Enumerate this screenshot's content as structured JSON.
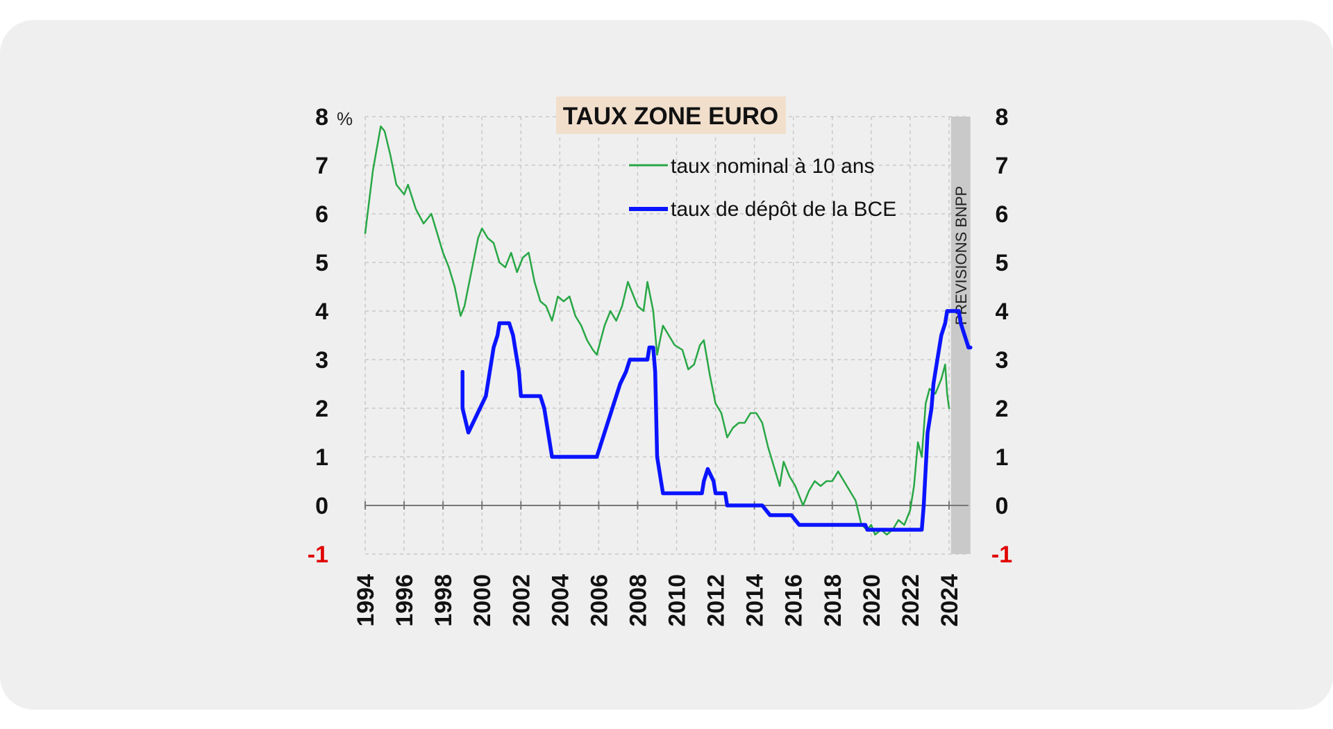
{
  "chart_data": {
    "type": "line",
    "title": "TAUX ZONE EURO",
    "y_unit": "%",
    "ylim": [
      -1,
      8
    ],
    "y_ticks": [
      8,
      7,
      6,
      5,
      4,
      3,
      2,
      1,
      0,
      -1
    ],
    "xlim": [
      1994,
      2025
    ],
    "x_tick_labels": [
      "1994",
      "1996",
      "1998",
      "2000",
      "2002",
      "2004",
      "2006",
      "2008",
      "2010",
      "2012",
      "2014",
      "2016",
      "2018",
      "2020",
      "2022",
      "2024"
    ],
    "grid": true,
    "legend_position": "top-right",
    "forecast_band": {
      "from": 2024.1,
      "to": 2025.1,
      "label": "PREVISIONS BNPP"
    },
    "colors": {
      "nominal": "#28a745",
      "deposit": "#0a14ff",
      "negative_tick": "#e00000",
      "title_bg": "#f1dfcc",
      "band": "#c9c9c9",
      "grid": "#c8c8c8"
    },
    "series": [
      {
        "name": "taux nominal à 10 ans",
        "color": "#28a745",
        "points": [
          [
            1994.0,
            5.6
          ],
          [
            1994.4,
            6.9
          ],
          [
            1994.8,
            7.8
          ],
          [
            1995.0,
            7.7
          ],
          [
            1995.3,
            7.2
          ],
          [
            1995.6,
            6.6
          ],
          [
            1996.0,
            6.4
          ],
          [
            1996.2,
            6.6
          ],
          [
            1996.6,
            6.1
          ],
          [
            1997.0,
            5.8
          ],
          [
            1997.4,
            6.0
          ],
          [
            1997.7,
            5.6
          ],
          [
            1998.0,
            5.2
          ],
          [
            1998.3,
            4.9
          ],
          [
            1998.6,
            4.5
          ],
          [
            1998.9,
            3.9
          ],
          [
            1999.1,
            4.1
          ],
          [
            1999.4,
            4.7
          ],
          [
            1999.8,
            5.5
          ],
          [
            2000.0,
            5.7
          ],
          [
            2000.3,
            5.5
          ],
          [
            2000.6,
            5.4
          ],
          [
            2000.9,
            5.0
          ],
          [
            2001.2,
            4.9
          ],
          [
            2001.5,
            5.2
          ],
          [
            2001.8,
            4.8
          ],
          [
            2002.1,
            5.1
          ],
          [
            2002.4,
            5.2
          ],
          [
            2002.7,
            4.6
          ],
          [
            2003.0,
            4.2
          ],
          [
            2003.3,
            4.1
          ],
          [
            2003.6,
            3.8
          ],
          [
            2003.9,
            4.3
          ],
          [
            2004.2,
            4.2
          ],
          [
            2004.5,
            4.3
          ],
          [
            2004.8,
            3.9
          ],
          [
            2005.1,
            3.7
          ],
          [
            2005.4,
            3.4
          ],
          [
            2005.7,
            3.2
          ],
          [
            2005.9,
            3.1
          ],
          [
            2006.3,
            3.7
          ],
          [
            2006.6,
            4.0
          ],
          [
            2006.9,
            3.8
          ],
          [
            2007.2,
            4.1
          ],
          [
            2007.5,
            4.6
          ],
          [
            2007.8,
            4.3
          ],
          [
            2008.0,
            4.1
          ],
          [
            2008.3,
            4.0
          ],
          [
            2008.5,
            4.6
          ],
          [
            2008.8,
            4.0
          ],
          [
            2009.0,
            3.1
          ],
          [
            2009.3,
            3.7
          ],
          [
            2009.6,
            3.5
          ],
          [
            2009.9,
            3.3
          ],
          [
            2010.3,
            3.2
          ],
          [
            2010.6,
            2.8
          ],
          [
            2010.9,
            2.9
          ],
          [
            2011.2,
            3.3
          ],
          [
            2011.4,
            3.4
          ],
          [
            2011.7,
            2.7
          ],
          [
            2012.0,
            2.1
          ],
          [
            2012.3,
            1.9
          ],
          [
            2012.6,
            1.4
          ],
          [
            2012.9,
            1.6
          ],
          [
            2013.2,
            1.7
          ],
          [
            2013.5,
            1.7
          ],
          [
            2013.8,
            1.9
          ],
          [
            2014.1,
            1.9
          ],
          [
            2014.4,
            1.7
          ],
          [
            2014.7,
            1.2
          ],
          [
            2015.0,
            0.8
          ],
          [
            2015.3,
            0.4
          ],
          [
            2015.5,
            0.9
          ],
          [
            2015.8,
            0.6
          ],
          [
            2016.1,
            0.4
          ],
          [
            2016.5,
            0.0
          ],
          [
            2016.8,
            0.3
          ],
          [
            2017.1,
            0.5
          ],
          [
            2017.4,
            0.4
          ],
          [
            2017.7,
            0.5
          ],
          [
            2018.0,
            0.5
          ],
          [
            2018.3,
            0.7
          ],
          [
            2018.6,
            0.5
          ],
          [
            2018.9,
            0.3
          ],
          [
            2019.2,
            0.1
          ],
          [
            2019.5,
            -0.4
          ],
          [
            2019.8,
            -0.5
          ],
          [
            2020.0,
            -0.4
          ],
          [
            2020.2,
            -0.6
          ],
          [
            2020.5,
            -0.5
          ],
          [
            2020.8,
            -0.6
          ],
          [
            2021.1,
            -0.5
          ],
          [
            2021.4,
            -0.3
          ],
          [
            2021.7,
            -0.4
          ],
          [
            2022.0,
            -0.1
          ],
          [
            2022.2,
            0.4
          ],
          [
            2022.4,
            1.3
          ],
          [
            2022.6,
            1.0
          ],
          [
            2022.8,
            2.1
          ],
          [
            2023.0,
            2.4
          ],
          [
            2023.3,
            2.3
          ],
          [
            2023.6,
            2.6
          ],
          [
            2023.8,
            2.9
          ],
          [
            2023.9,
            2.3
          ],
          [
            2024.0,
            2.0
          ]
        ]
      },
      {
        "name": "taux de dépôt de la BCE",
        "color": "#0a14ff",
        "points": [
          [
            1999.0,
            2.75
          ],
          [
            1999.0,
            2.0
          ],
          [
            1999.3,
            1.5
          ],
          [
            1999.9,
            2.0
          ],
          [
            2000.2,
            2.25
          ],
          [
            2000.4,
            2.75
          ],
          [
            2000.6,
            3.25
          ],
          [
            2000.8,
            3.5
          ],
          [
            2000.9,
            3.75
          ],
          [
            2001.4,
            3.75
          ],
          [
            2001.6,
            3.5
          ],
          [
            2001.7,
            3.25
          ],
          [
            2001.9,
            2.75
          ],
          [
            2002.0,
            2.25
          ],
          [
            2003.0,
            2.25
          ],
          [
            2003.2,
            2.0
          ],
          [
            2003.4,
            1.5
          ],
          [
            2003.6,
            1.0
          ],
          [
            2005.9,
            1.0
          ],
          [
            2006.1,
            1.25
          ],
          [
            2006.3,
            1.5
          ],
          [
            2006.5,
            1.75
          ],
          [
            2006.7,
            2.0
          ],
          [
            2006.9,
            2.25
          ],
          [
            2007.1,
            2.5
          ],
          [
            2007.4,
            2.75
          ],
          [
            2007.6,
            3.0
          ],
          [
            2008.5,
            3.0
          ],
          [
            2008.6,
            3.25
          ],
          [
            2008.8,
            3.25
          ],
          [
            2008.9,
            2.75
          ],
          [
            2009.0,
            1.0
          ],
          [
            2009.2,
            0.5
          ],
          [
            2009.3,
            0.25
          ],
          [
            2011.3,
            0.25
          ],
          [
            2011.4,
            0.5
          ],
          [
            2011.6,
            0.75
          ],
          [
            2011.9,
            0.5
          ],
          [
            2012.0,
            0.25
          ],
          [
            2012.5,
            0.25
          ],
          [
            2012.6,
            0.0
          ],
          [
            2014.4,
            0.0
          ],
          [
            2014.6,
            -0.1
          ],
          [
            2014.8,
            -0.2
          ],
          [
            2015.9,
            -0.2
          ],
          [
            2016.1,
            -0.3
          ],
          [
            2016.3,
            -0.4
          ],
          [
            2019.7,
            -0.4
          ],
          [
            2019.8,
            -0.5
          ],
          [
            2022.6,
            -0.5
          ],
          [
            2022.7,
            0.0
          ],
          [
            2022.8,
            0.75
          ],
          [
            2022.9,
            1.5
          ],
          [
            2023.1,
            2.0
          ],
          [
            2023.2,
            2.5
          ],
          [
            2023.4,
            3.0
          ],
          [
            2023.6,
            3.5
          ],
          [
            2023.8,
            3.75
          ],
          [
            2023.9,
            4.0
          ],
          [
            2024.5,
            4.0
          ],
          [
            2024.6,
            3.75
          ],
          [
            2024.8,
            3.5
          ],
          [
            2025.0,
            3.25
          ],
          [
            2025.1,
            3.25
          ]
        ]
      }
    ]
  }
}
